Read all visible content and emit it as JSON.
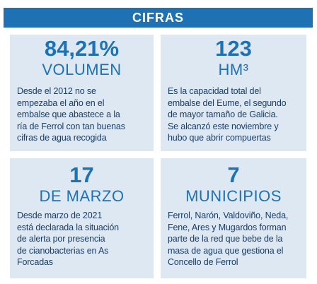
{
  "header": {
    "title": "CIFRAS"
  },
  "colors": {
    "accent": "#1e72b3",
    "card_background": "#dde8f3",
    "body_text": "#1a3e66"
  },
  "cards": [
    {
      "figure": "84,21%",
      "label": "VOLUMEN",
      "description": [
        "Desde el 2012 no se",
        "empezaba el año en el",
        "embalse que abastece a la",
        "ría de Ferrol con tan buenas",
        "cifras de agua recogida"
      ]
    },
    {
      "figure": "123",
      "label": "HM³",
      "description": [
        "Es la capacidad total del",
        "embalse del Eume, el segundo",
        "de mayor tamaño de Galicia.",
        "Se alcanzó este noviembre y",
        "hubo que abrir compuertas"
      ]
    },
    {
      "figure": "17",
      "label": "DE MARZO",
      "description": [
        "Desde marzo de 2021",
        "está declarada la situación",
        "de alerta por presencia",
        "de cianobacterias en As",
        "Forcadas"
      ]
    },
    {
      "figure": "7",
      "label": "MUNICIPIOS",
      "description": [
        "Ferrol, Narón, Valdoviño, Neda,",
        "Fene, Ares y Mugardos forman",
        "parte de la red que bebe de la",
        "masa de agua que gestiona el",
        "Concello de Ferrol"
      ]
    }
  ]
}
